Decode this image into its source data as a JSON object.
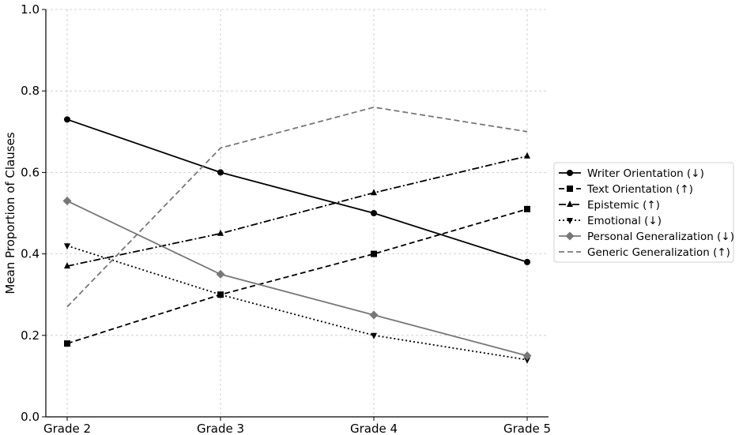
{
  "chart_data": {
    "type": "line",
    "xlabel": "",
    "ylabel": "Mean Proportion of Clauses",
    "categories": [
      "Grade 2",
      "Grade 3",
      "Grade 4",
      "Grade 5"
    ],
    "ylim": [
      0.0,
      1.0
    ],
    "yticks": [
      "0.0",
      "0.2",
      "0.4",
      "0.6",
      "0.8",
      "1.0"
    ],
    "grid": true,
    "legend_position": "center-right",
    "series": [
      {
        "name": "Writer Orientation (↓)",
        "values": [
          0.73,
          0.6,
          0.5,
          0.38
        ],
        "color": "#000000",
        "dash": "solid",
        "marker": "circle"
      },
      {
        "name": "Text Orientation (↑)",
        "values": [
          0.18,
          0.3,
          0.4,
          0.51
        ],
        "color": "#000000",
        "dash": "dashed",
        "marker": "square"
      },
      {
        "name": "Epistemic (↑)",
        "values": [
          0.37,
          0.45,
          0.55,
          0.64
        ],
        "color": "#000000",
        "dash": "dashdot",
        "marker": "triangle-up"
      },
      {
        "name": "Emotional (↓)",
        "values": [
          0.42,
          0.3,
          0.2,
          0.14
        ],
        "color": "#000000",
        "dash": "dotted",
        "marker": "triangle-down"
      },
      {
        "name": "Personal Generalization (↓)",
        "values": [
          0.53,
          0.35,
          0.25,
          0.15
        ],
        "color": "#777777",
        "dash": "solid",
        "marker": "diamond"
      },
      {
        "name": "Generic Generalization (↑)",
        "values": [
          0.27,
          0.66,
          0.76,
          0.7
        ],
        "color": "#777777",
        "dash": "dashed",
        "marker": "none"
      }
    ]
  }
}
